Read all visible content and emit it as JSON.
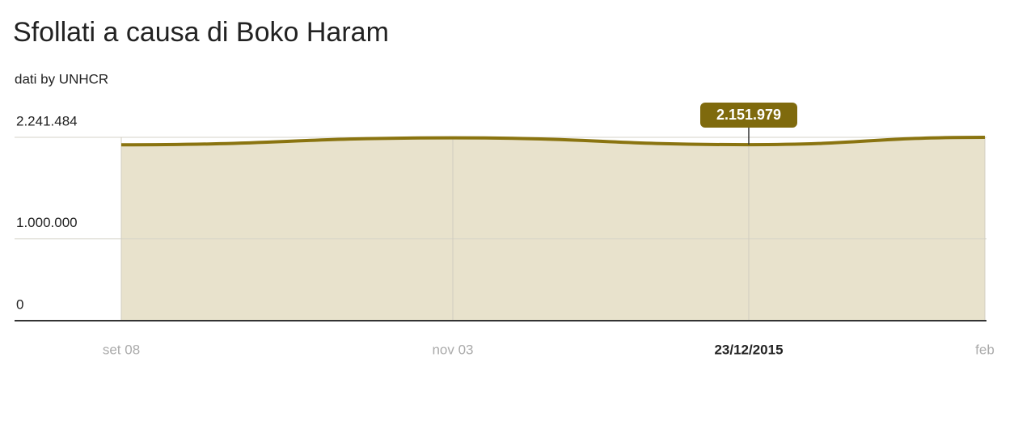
{
  "chart_data": {
    "type": "area",
    "title": "Sfollati a causa di Boko Haram",
    "subtitle": "dati by UNHCR",
    "categories": [
      "set 08",
      "nov 03",
      "23/12/2015",
      "feb"
    ],
    "highlight_index": 2,
    "series": [
      {
        "color": "#8a7410",
        "fill": "#e8e2cc",
        "values": [
          2150000,
          2235000,
          2151979,
          2241484
        ],
        "value_labels": [
          null,
          null,
          "2.151.979",
          null
        ]
      }
    ],
    "ylim": [
      0,
      2241484
    ],
    "yticks": [
      {
        "value": 0,
        "label": "0"
      },
      {
        "value": 1000000,
        "label": "1.000.000"
      },
      {
        "value": 2241484,
        "label": "2.241.484"
      }
    ],
    "grid": true
  }
}
